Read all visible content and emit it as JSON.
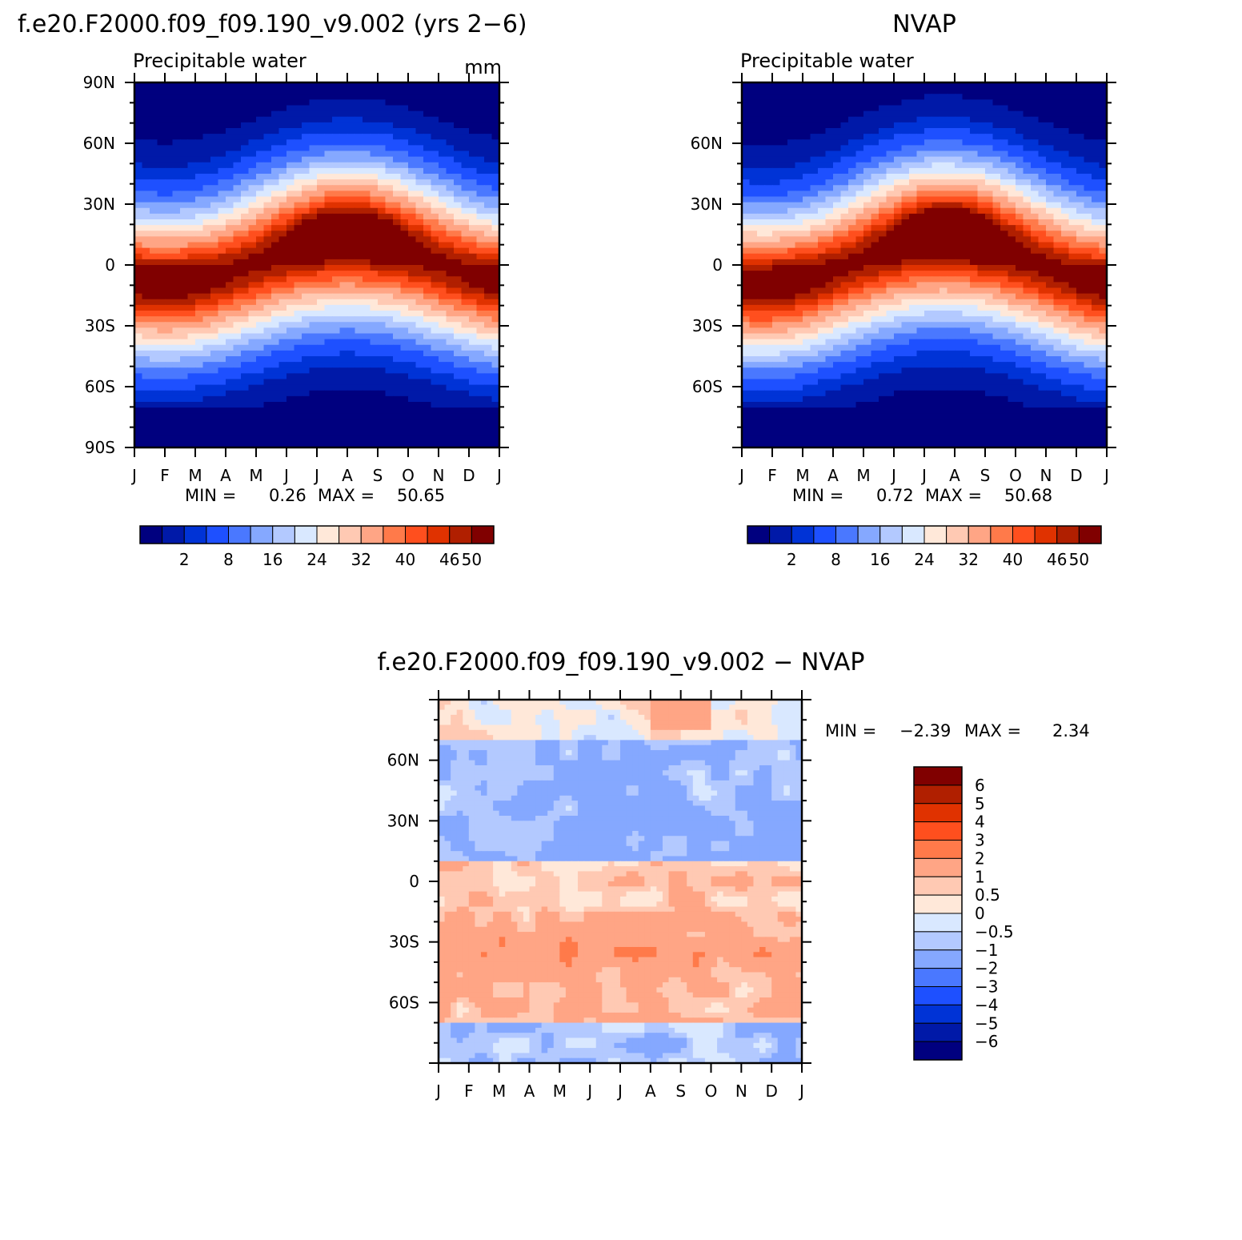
{
  "colors": {
    "seq": [
      "#00007f",
      "#0019a8",
      "#0033d6",
      "#1e50ff",
      "#4a78ff",
      "#85a8ff",
      "#b3c9ff",
      "#d9e8ff",
      "#ffe8d9",
      "#ffc9b3",
      "#ffa585",
      "#ff7a4a",
      "#ff4f1e",
      "#e03200",
      "#b01f00",
      "#800000"
    ],
    "div": [
      "#00007f",
      "#0019a8",
      "#0033d6",
      "#1e50ff",
      "#4a78ff",
      "#85a8ff",
      "#b3c9ff",
      "#d9e8ff",
      "#ffe8d9",
      "#ffc9b3",
      "#ffa585",
      "#ff7a4a",
      "#ff4f1e",
      "#e03200",
      "#b01f00",
      "#800000"
    ]
  },
  "chart_data": [
    {
      "type": "heatmap",
      "title_left": "f.e20.F2000.f09_f09.190_v9.002 (yrs 2−6)",
      "subtitle_left": "Precipitable water",
      "units": "mm",
      "x_tick_labels": [
        "J",
        "F",
        "M",
        "A",
        "M",
        "J",
        "J",
        "A",
        "S",
        "O",
        "N",
        "D",
        "J"
      ],
      "y_tick_labels": [
        "90N",
        "60N",
        "30N",
        "0",
        "30S",
        "60S",
        "90S"
      ],
      "y_ticks": [
        90,
        60,
        30,
        0,
        -30,
        -60,
        -90
      ],
      "ylim": [
        -90,
        90
      ],
      "minmax": {
        "min_label": "MIN =",
        "min": "0.26",
        "max_label": "MAX =",
        "max": "50.65"
      },
      "colorbar_labels": [
        "2",
        "8",
        "16",
        "24",
        "32",
        "40",
        "46",
        "50"
      ],
      "levels": [
        2,
        5,
        8,
        12,
        16,
        20,
        24,
        28,
        32,
        36,
        40,
        43,
        46,
        48,
        50
      ],
      "field": {
        "peak": 50.65,
        "itcz_amp": 7,
        "itcz_phase_month": 7,
        "model": "A"
      }
    },
    {
      "type": "heatmap",
      "title_center": "NVAP",
      "subtitle_left": "Precipitable water",
      "x_tick_labels": [
        "J",
        "F",
        "M",
        "A",
        "M",
        "J",
        "J",
        "A",
        "S",
        "O",
        "N",
        "D",
        "J"
      ],
      "y_tick_labels": [
        "60N",
        "30N",
        "0",
        "30S",
        "60S"
      ],
      "y_ticks": [
        60,
        30,
        0,
        -30,
        -60
      ],
      "ylim": [
        -90,
        90
      ],
      "minmax": {
        "min_label": "MIN =",
        "min": "0.72",
        "max_label": "MAX =",
        "max": "50.68"
      },
      "colorbar_labels": [
        "2",
        "8",
        "16",
        "24",
        "32",
        "40",
        "46",
        "50"
      ],
      "levels": [
        2,
        5,
        8,
        12,
        16,
        20,
        24,
        28,
        32,
        36,
        40,
        43,
        46,
        48,
        50
      ],
      "field": {
        "peak": 50.68,
        "itcz_amp": 8,
        "itcz_phase_month": 6.5,
        "model": "B"
      }
    },
    {
      "type": "heatmap",
      "title_center": "f.e20.F2000.f09_f09.190_v9.002 − NVAP",
      "x_tick_labels": [
        "J",
        "F",
        "M",
        "A",
        "M",
        "J",
        "J",
        "A",
        "S",
        "O",
        "N",
        "D",
        "J"
      ],
      "y_tick_labels": [
        "60N",
        "30N",
        "0",
        "30S",
        "60S"
      ],
      "y_ticks": [
        60,
        30,
        0,
        -30,
        -60
      ],
      "ylim": [
        -90,
        90
      ],
      "minmax": {
        "min_label": "MIN =",
        "min": "−2.39",
        "max_label": "MAX =",
        "max": "2.34"
      },
      "colorbar_labels": [
        "6",
        "5",
        "4",
        "3",
        "2",
        "1",
        "0.5",
        "0",
        "−0.5",
        "−1",
        "−2",
        "−3",
        "−4",
        "−5",
        "−6"
      ],
      "levels": [
        -6,
        -5,
        -4,
        -3,
        -2,
        -1,
        -0.5,
        0,
        0.5,
        1,
        2,
        3,
        4,
        5,
        6
      ],
      "field": {
        "min": -2.39,
        "max": 2.34
      }
    }
  ]
}
